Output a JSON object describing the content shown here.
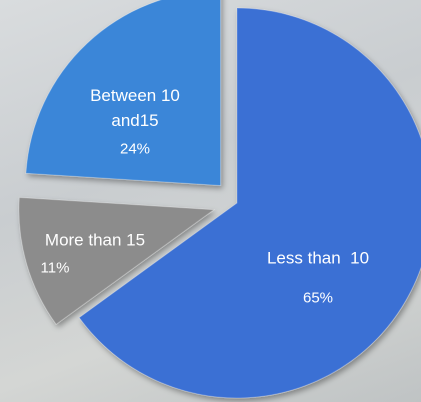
{
  "chart_data": {
    "type": "pie",
    "categories": [
      "Less than  10",
      "More than 15",
      "Between 10 and15"
    ],
    "values": [
      65,
      11,
      24
    ],
    "value_labels": [
      "65%",
      "11%",
      "24%"
    ],
    "colors": [
      "#3b6fd4",
      "#8c8c8c",
      "#3a86d8"
    ]
  }
}
